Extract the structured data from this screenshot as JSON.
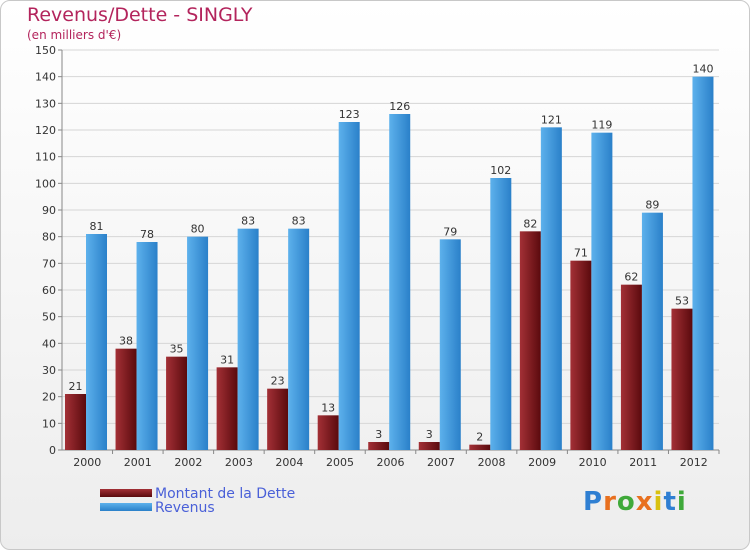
{
  "chart_data": {
    "type": "bar",
    "title": "Revenus/Dette - SINGLY",
    "subtitle": "(en milliers d'€)",
    "categories": [
      "2000",
      "2001",
      "2002",
      "2003",
      "2004",
      "2005",
      "2006",
      "2007",
      "2008",
      "2009",
      "2010",
      "2011",
      "2012"
    ],
    "series": [
      {
        "name": "Montant de la Dette",
        "values": [
          21,
          38,
          35,
          31,
          23,
          13,
          3,
          3,
          2,
          82,
          71,
          62,
          53
        ],
        "color": "#7a1417"
      },
      {
        "name": "Revenus",
        "values": [
          81,
          78,
          80,
          83,
          83,
          123,
          126,
          79,
          102,
          121,
          119,
          89,
          140
        ],
        "color": "#3a95dc"
      }
    ],
    "ylim": [
      0,
      150
    ],
    "ytick_step": 10,
    "grid": true,
    "legend_position": "bottom-left"
  },
  "logo": {
    "letters": [
      "P",
      "r",
      "o",
      "x",
      "i",
      "t",
      "i"
    ],
    "colors": [
      "#2f7fd2",
      "#e8701f",
      "#3fa93a",
      "#e8701f",
      "#d9c10f",
      "#2f7fd2",
      "#3fa93a"
    ]
  }
}
